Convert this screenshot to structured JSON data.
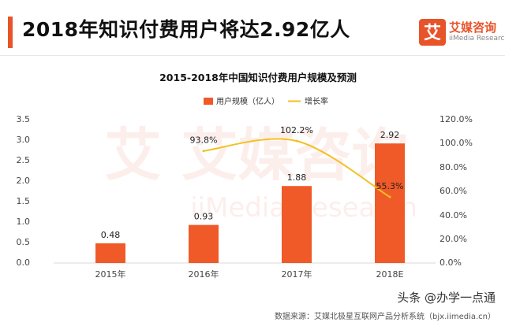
{
  "header": {
    "title": "2018年知识付费用户将达2.92亿人",
    "accent_color": "#e8542a"
  },
  "logo": {
    "name": "艾媒咨询",
    "sub": "iiMedia Research",
    "glyph": "艾",
    "color": "#e8542a"
  },
  "watermark": {
    "text": "艾 艾媒咨询",
    "sub": "iiMedia Research"
  },
  "chart_data": {
    "type": "bar",
    "title": "2015-2018年中国知识付费用户规模及预测",
    "categories": [
      "2015年",
      "2016年",
      "2017年",
      "2018E"
    ],
    "series": [
      {
        "name": "用户规模（亿人）",
        "type": "bar",
        "axis": "left",
        "color": "#f05a28",
        "values": [
          0.48,
          0.93,
          1.88,
          2.92
        ],
        "labels": [
          "0.48",
          "0.93",
          "1.88",
          "2.92"
        ]
      },
      {
        "name": "增长率",
        "type": "line",
        "axis": "right",
        "color": "#f2c020",
        "values": [
          null,
          93.8,
          102.2,
          55.3
        ],
        "labels": [
          "",
          "93.8%",
          "102.2%",
          "55.3%"
        ]
      }
    ],
    "y_left": {
      "min": 0,
      "max": 3.5,
      "ticks": [
        "0.0",
        "0.5",
        "1.0",
        "1.5",
        "2.0",
        "2.5",
        "3.0",
        "3.5"
      ]
    },
    "y_right": {
      "min": 0,
      "max": 120,
      "ticks": [
        "0.0%",
        "20.0%",
        "40.0%",
        "60.0%",
        "80.0%",
        "100.0%",
        "120.0%"
      ]
    },
    "legend_position": "top-center",
    "grid": false
  },
  "footer": {
    "source": "数据来源：艾媒北极星互联网产品分析系统（bjx.iimedia.cn）",
    "badge": "头条 @办学一点通"
  }
}
